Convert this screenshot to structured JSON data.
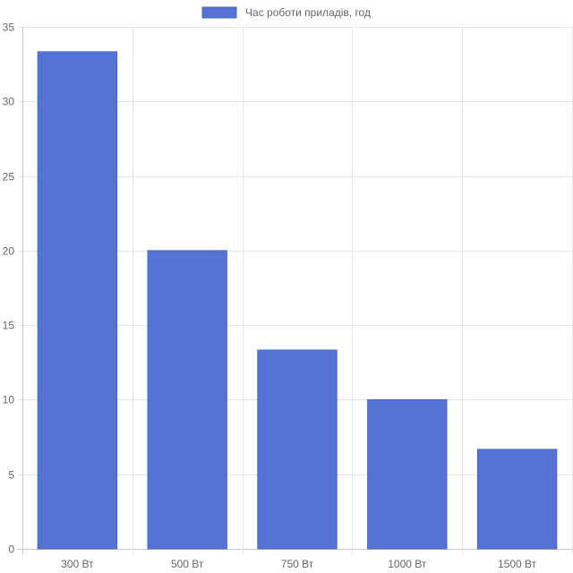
{
  "chart_data": {
    "type": "bar",
    "categories": [
      "300 Вт",
      "500 Вт",
      "750 Вт",
      "1000 Вт",
      "1500 Вт"
    ],
    "series": [
      {
        "name": "Час роботи приладів, год",
        "values": [
          33.33,
          20,
          13.33,
          10,
          6.67
        ],
        "color": "#5473d4"
      }
    ],
    "ylim": [
      0,
      35
    ],
    "yticks": [
      0,
      5,
      10,
      15,
      20,
      25,
      30,
      35
    ],
    "grid": true,
    "legend_position": "top-center"
  }
}
